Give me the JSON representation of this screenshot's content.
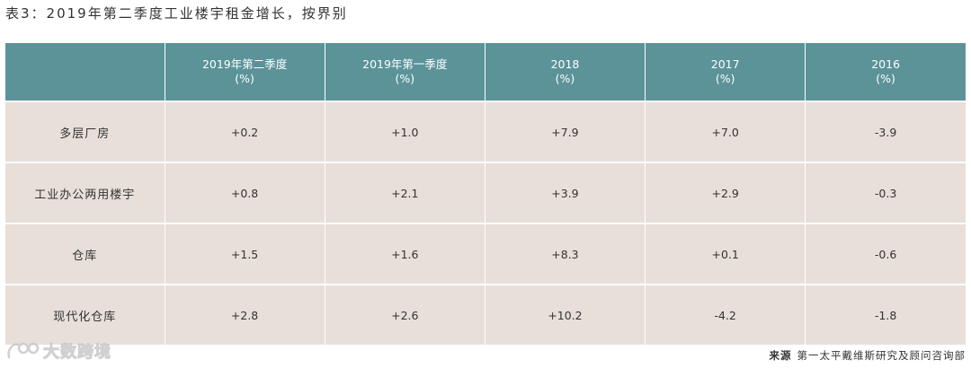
{
  "title": "表3：2019年第二季度工业楼宇租金增长，按界别",
  "table": {
    "header": [
      {
        "line1": "",
        "line2": ""
      },
      {
        "line1": "2019年第二季度",
        "line2": "(%)"
      },
      {
        "line1": "2019年第一季度",
        "line2": "(%)"
      },
      {
        "line1": "2018",
        "line2": "(%)"
      },
      {
        "line1": "2017",
        "line2": "(%)"
      },
      {
        "line1": "2016",
        "line2": "(%)"
      }
    ],
    "rows": [
      {
        "label": "多层厂房",
        "values": [
          "+0.2",
          "+1.0",
          "+7.9",
          "+7.0",
          "-3.9"
        ]
      },
      {
        "label": "工业办公两用楼宇",
        "values": [
          "+0.8",
          "+2.1",
          "+3.9",
          "+2.9",
          "-0.3"
        ]
      },
      {
        "label": "仓库",
        "values": [
          "+1.5",
          "+1.6",
          "+8.3",
          "+0.1",
          "-0.6"
        ]
      },
      {
        "label": "现代化仓库",
        "values": [
          "+2.8",
          "+2.6",
          "+10.2",
          "-4.2",
          "-1.8"
        ]
      }
    ]
  },
  "watermark": {
    "text": "大数跨境"
  },
  "source": {
    "label": "来源",
    "text": "第一太平戴维斯研究及顾问咨询部"
  },
  "colors": {
    "header_bg": "#5b9399",
    "body_bg": "#e8dfd9",
    "text": "#333333"
  }
}
